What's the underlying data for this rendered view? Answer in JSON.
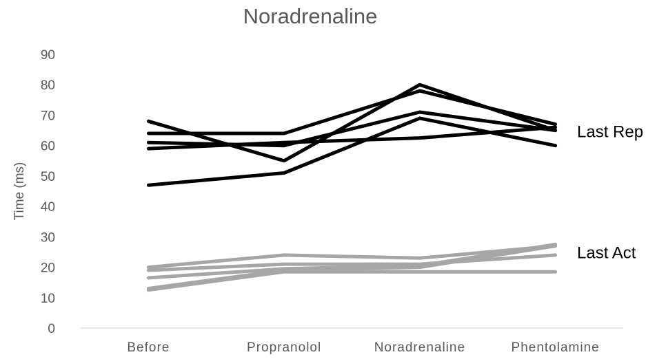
{
  "chart_data": {
    "type": "line",
    "title": "Noradrenaline",
    "ylabel": "Time (ms)",
    "xlabel": "",
    "categories": [
      "Before",
      "Propranolol",
      "Noradrenaline",
      "Phentolamine"
    ],
    "ylim": [
      0,
      90
    ],
    "yticks": [
      0,
      10,
      20,
      30,
      40,
      50,
      60,
      70,
      80,
      90
    ],
    "grid": false,
    "colors": {
      "last_rep": "#000000",
      "last_act": "#a6a6a6",
      "text": "#595959",
      "axis": "#d9d9d9"
    },
    "groups": [
      {
        "label": "Last Rep",
        "color": "#000000",
        "series": [
          {
            "values": [
              68,
              55,
              80,
              65
            ]
          },
          {
            "values": [
              64,
              64,
              78,
              67
            ]
          },
          {
            "values": [
              61,
              60,
              71,
              65
            ]
          },
          {
            "values": [
              59,
              61,
              62.5,
              66
            ]
          },
          {
            "values": [
              47,
              51,
              69,
              60
            ]
          }
        ]
      },
      {
        "label": "Last Act",
        "color": "#a6a6a6",
        "series": [
          {
            "values": [
              20,
              24,
              23,
              27
            ]
          },
          {
            "values": [
              19,
              21,
              21,
              24
            ]
          },
          {
            "values": [
              16.5,
              19.5,
              20.5,
              27.5
            ]
          },
          {
            "values": [
              12.5,
              18.5,
              18.5,
              18.5
            ]
          },
          {
            "values": [
              13,
              19,
              20,
              27
            ]
          }
        ]
      }
    ]
  }
}
